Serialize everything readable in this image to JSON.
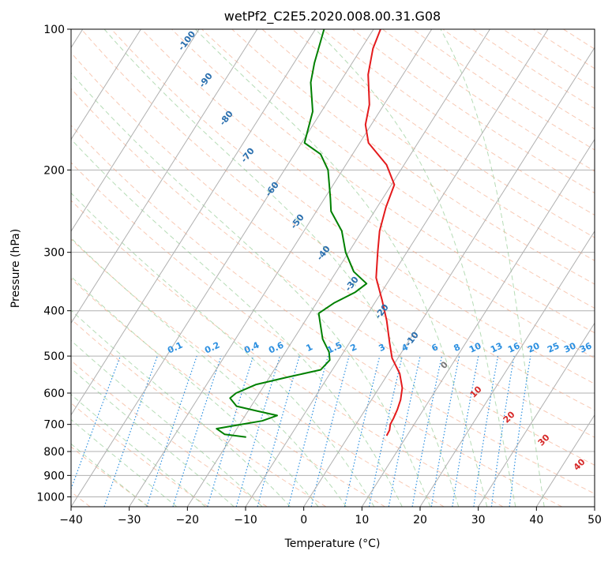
{
  "chart_data": {
    "type": "line",
    "title": "wetPf2_C2E5.2020.008.00.31.G08",
    "xlabel": "Temperature (°C)",
    "ylabel": "Pressure (hPa)",
    "xlim": [
      -40,
      50
    ],
    "ylim": [
      1050,
      100
    ],
    "y_scale": "log",
    "x_ticks": [
      -40,
      -30,
      -20,
      -10,
      0,
      10,
      20,
      30,
      40,
      50
    ],
    "y_ticks": [
      100,
      200,
      300,
      400,
      500,
      600,
      700,
      800,
      900,
      1000
    ],
    "grid": true,
    "series": [
      {
        "role": "temperature",
        "color": "#e41a1c",
        "points": [
          [
            6.5,
            740
          ],
          [
            6.4,
            720
          ],
          [
            5.9,
            700
          ],
          [
            5.8,
            680
          ],
          [
            5.5,
            650
          ],
          [
            5.0,
            620
          ],
          [
            4.0,
            585
          ],
          [
            2.0,
            545
          ],
          [
            -1.0,
            505
          ],
          [
            -3.0,
            470
          ],
          [
            -6.0,
            420
          ],
          [
            -9.0,
            380
          ],
          [
            -12.5,
            340
          ],
          [
            -15.0,
            300
          ],
          [
            -17.0,
            270
          ],
          [
            -18.5,
            240
          ],
          [
            -19.5,
            215
          ],
          [
            -23.0,
            195
          ],
          [
            -28.5,
            175
          ],
          [
            -31.0,
            160
          ],
          [
            -32.5,
            145
          ],
          [
            -36.0,
            125
          ],
          [
            -38.0,
            110
          ],
          [
            -38.8,
            100
          ]
        ]
      },
      {
        "role": "dewpoint",
        "color": "#008000",
        "points": [
          [
            -17.5,
            745
          ],
          [
            -21.5,
            735
          ],
          [
            -23.5,
            715
          ],
          [
            -21.0,
            705
          ],
          [
            -16.5,
            688
          ],
          [
            -14.5,
            670
          ],
          [
            -18.5,
            655
          ],
          [
            -22.5,
            640
          ],
          [
            -24.5,
            615
          ],
          [
            -24.0,
            600
          ],
          [
            -23.0,
            590
          ],
          [
            -21.5,
            575
          ],
          [
            -17.0,
            555
          ],
          [
            -12.0,
            535
          ],
          [
            -11.5,
            510
          ],
          [
            -12.5,
            490
          ],
          [
            -15.0,
            460
          ],
          [
            -17.5,
            420
          ],
          [
            -18.5,
            405
          ],
          [
            -17.0,
            385
          ],
          [
            -14.5,
            365
          ],
          [
            -13.5,
            350
          ],
          [
            -17.0,
            330
          ],
          [
            -20.5,
            300
          ],
          [
            -23.5,
            270
          ],
          [
            -27.5,
            245
          ],
          [
            -29.0,
            230
          ],
          [
            -32.5,
            200
          ],
          [
            -35.5,
            185
          ],
          [
            -39.5,
            175
          ],
          [
            -41.5,
            150
          ],
          [
            -45.0,
            130
          ],
          [
            -46.5,
            118
          ],
          [
            -48.5,
            100
          ]
        ]
      }
    ],
    "dry_adiabat_labels": [
      "-100",
      "-90",
      "-80",
      "-70",
      "-60",
      "-50",
      "-40",
      "-30",
      "-20",
      "-10"
    ],
    "moist_adiabat_labels": [
      "0",
      "10",
      "20",
      "30",
      "40"
    ],
    "mixing_ratio_labels": [
      "0.1",
      "0.2",
      "0.4",
      "0.6",
      "1",
      "1.5",
      "2",
      "3",
      "4",
      "6",
      "8",
      "10",
      "13",
      "16",
      "20",
      "25",
      "30",
      "36"
    ],
    "colors": {
      "temperature": "#e41a1c",
      "dewpoint": "#008000",
      "isotherm": "#b0b0b0",
      "dry_adiabat": "#f4a582",
      "moist_adiabat": "#8fc98f",
      "mixing_ratio": "#2b8fe0",
      "label_dry": "#2a6fae",
      "label_moist": "#d62828"
    }
  }
}
